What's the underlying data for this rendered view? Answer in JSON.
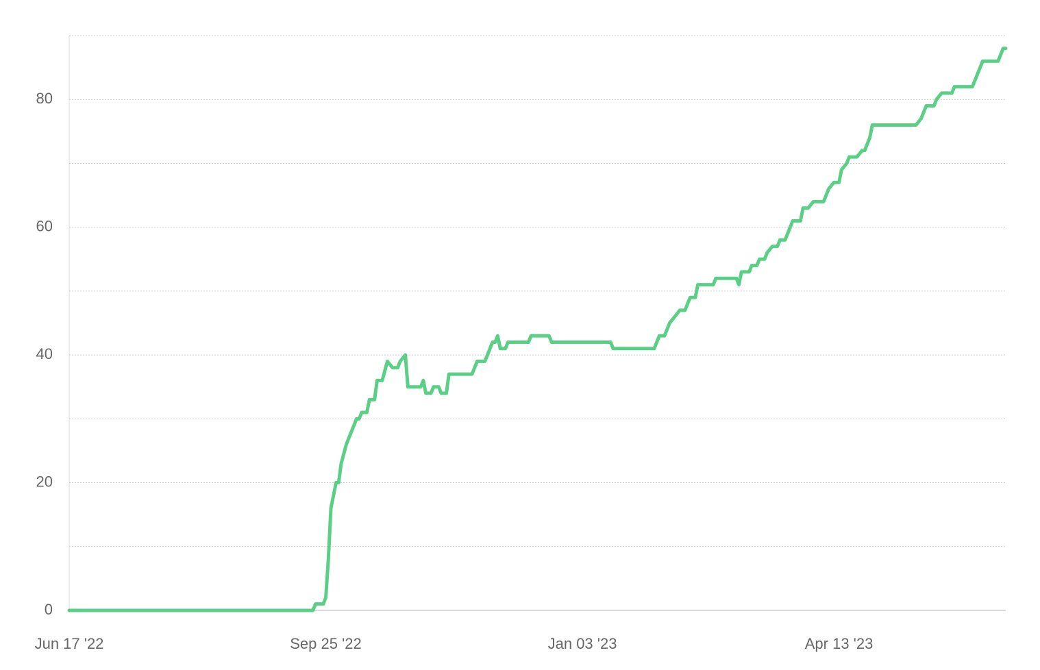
{
  "chart_data": {
    "type": "line",
    "x": [
      "2022-06-17",
      "2022-09-20",
      "2022-09-21",
      "2022-09-24",
      "2022-09-25",
      "2022-09-26",
      "2022-09-27",
      "2022-09-29",
      "2022-09-30",
      "2022-10-01",
      "2022-10-03",
      "2022-10-07",
      "2022-10-08",
      "2022-10-09",
      "2022-10-11",
      "2022-10-12",
      "2022-10-14",
      "2022-10-15",
      "2022-10-17",
      "2022-10-19",
      "2022-10-21",
      "2022-10-23",
      "2022-10-24",
      "2022-10-26",
      "2022-10-27",
      "2022-11-01",
      "2022-11-02",
      "2022-11-03",
      "2022-11-05",
      "2022-11-06",
      "2022-11-08",
      "2022-11-09",
      "2022-11-11",
      "2022-11-12",
      "2022-11-21",
      "2022-11-23",
      "2022-11-26",
      "2022-11-29",
      "2022-11-30",
      "2022-12-01",
      "2022-12-02",
      "2022-12-04",
      "2022-12-05",
      "2022-12-13",
      "2022-12-14",
      "2022-12-21",
      "2022-12-22",
      "2023-01-14",
      "2023-01-15",
      "2023-01-31",
      "2023-02-02",
      "2023-02-04",
      "2023-02-06",
      "2023-02-08",
      "2023-02-10",
      "2023-02-12",
      "2023-02-14",
      "2023-02-16",
      "2023-02-17",
      "2023-02-23",
      "2023-02-24",
      "2023-03-04",
      "2023-03-05",
      "2023-03-06",
      "2023-03-09",
      "2023-03-10",
      "2023-03-12",
      "2023-03-13",
      "2023-03-15",
      "2023-03-16",
      "2023-03-18",
      "2023-03-20",
      "2023-03-21",
      "2023-03-23",
      "2023-03-24",
      "2023-03-26",
      "2023-03-29",
      "2023-03-30",
      "2023-04-01",
      "2023-04-03",
      "2023-04-07",
      "2023-04-09",
      "2023-04-11",
      "2023-04-13",
      "2023-04-14",
      "2023-04-16",
      "2023-04-17",
      "2023-04-20",
      "2023-04-22",
      "2023-04-23",
      "2023-04-25",
      "2023-04-26",
      "2023-05-13",
      "2023-05-15",
      "2023-05-17",
      "2023-05-20",
      "2023-05-21",
      "2023-05-23",
      "2023-05-27",
      "2023-05-28",
      "2023-06-04",
      "2023-06-08",
      "2023-06-14",
      "2023-06-16",
      "2023-06-17"
    ],
    "series": [
      {
        "color": "#5ccf87",
        "values": [
          0,
          0,
          1,
          1,
          2,
          8,
          16,
          20,
          20,
          23,
          26,
          30,
          30,
          31,
          31,
          33,
          33,
          36,
          36,
          39,
          38,
          38,
          39,
          40,
          35,
          35,
          36,
          34,
          34,
          35,
          35,
          34,
          34,
          37,
          37,
          39,
          39,
          42,
          42,
          43,
          41,
          41,
          42,
          42,
          43,
          43,
          42,
          42,
          41,
          41,
          43,
          43,
          45,
          46,
          47,
          47,
          49,
          49,
          51,
          51,
          52,
          52,
          51,
          53,
          53,
          54,
          54,
          55,
          55,
          56,
          57,
          57,
          58,
          58,
          59,
          61,
          61,
          63,
          63,
          64,
          64,
          66,
          67,
          67,
          69,
          70,
          71,
          71,
          72,
          72,
          74,
          76,
          76,
          77,
          79,
          79,
          80,
          81,
          81,
          82,
          82,
          86,
          86,
          88,
          88
        ]
      }
    ],
    "xlim": [
      "2022-06-17",
      "2023-06-17"
    ],
    "xticks": [
      {
        "value": "2022-06-17",
        "label": "Jun 17 '22"
      },
      {
        "value": "2022-09-25",
        "label": "Sep 25 '22"
      },
      {
        "value": "2023-01-03",
        "label": "Jan 03 '23"
      },
      {
        "value": "2023-04-13",
        "label": "Apr 13 '23"
      }
    ],
    "ylim": [
      0,
      90
    ],
    "yticks": [
      0,
      20,
      40,
      60,
      80
    ],
    "minor_yticks": [
      10,
      30,
      50,
      70,
      90
    ],
    "grid": true
  }
}
